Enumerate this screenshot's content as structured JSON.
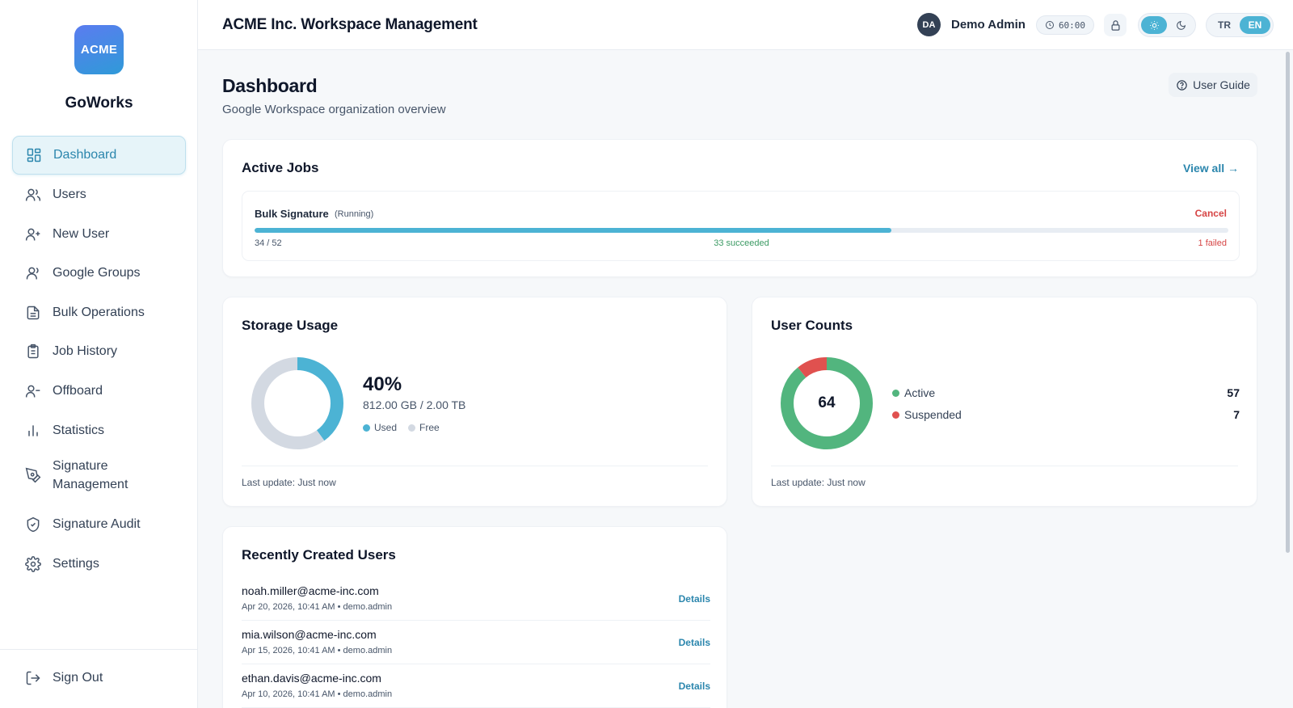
{
  "sidebar": {
    "logo_text": "ACME",
    "brand": "GoWorks",
    "items": [
      {
        "label": "Dashboard",
        "icon": "dashboard-icon"
      },
      {
        "label": "Users",
        "icon": "users-icon"
      },
      {
        "label": "New User",
        "icon": "user-plus-icon"
      },
      {
        "label": "Google Groups",
        "icon": "groups-icon"
      },
      {
        "label": "Bulk Operations",
        "icon": "file-list-icon"
      },
      {
        "label": "Job History",
        "icon": "clipboard-icon"
      },
      {
        "label": "Offboard",
        "icon": "user-minus-icon"
      },
      {
        "label": "Statistics",
        "icon": "bar-chart-icon"
      },
      {
        "label": "Signature Management",
        "icon": "pen-icon"
      },
      {
        "label": "Signature Audit",
        "icon": "shield-icon"
      },
      {
        "label": "Settings",
        "icon": "gear-icon"
      }
    ],
    "sign_out": "Sign Out"
  },
  "header": {
    "title": "ACME Inc. Workspace Management",
    "avatar_initials": "DA",
    "user_name": "Demo Admin",
    "session_timer": "60:00",
    "languages": [
      "TR",
      "EN"
    ],
    "active_language": "EN",
    "theme": "light"
  },
  "page": {
    "title": "Dashboard",
    "subtitle": "Google Workspace organization overview",
    "guide_label": "User Guide"
  },
  "active_jobs": {
    "title": "Active Jobs",
    "view_all": "View all →",
    "job": {
      "name": "Bulk Signature",
      "status": "(Running)",
      "cancel": "Cancel",
      "progress": 0.654,
      "count": "34 / 52",
      "succeeded": "33 succeeded",
      "failed": "1 failed"
    }
  },
  "storage": {
    "title": "Storage Usage",
    "percent_label": "40%",
    "used_fraction": 0.4,
    "size": "812.00 GB / 2.00 TB",
    "legend_used": "Used",
    "legend_free": "Free",
    "last_update": "Last update: Just now",
    "colors": {
      "used": "#4cb3d4",
      "free": "#d3d9e2"
    }
  },
  "user_counts": {
    "title": "User Counts",
    "total": "64",
    "active_label": "Active",
    "active_value": "57",
    "suspended_label": "Suspended",
    "suspended_value": "7",
    "last_update": "Last update: Just now",
    "colors": {
      "active": "#52b57e",
      "suspended": "#e0514f"
    }
  },
  "recent_users": {
    "title": "Recently Created Users",
    "rows": [
      {
        "email": "noah.miller@acme-inc.com",
        "meta": "Apr 20, 2026, 10:41 AM • demo.admin",
        "action": "Details"
      },
      {
        "email": "mia.wilson@acme-inc.com",
        "meta": "Apr 15, 2026, 10:41 AM • demo.admin",
        "action": "Details"
      },
      {
        "email": "ethan.davis@acme-inc.com",
        "meta": "Apr 10, 2026, 10:41 AM • demo.admin",
        "action": "Details"
      }
    ]
  },
  "colors": {
    "accent": "#2b86ad",
    "accent_fill": "#4cb3d4",
    "danger": "#d64545",
    "success": "#3b9a63"
  }
}
